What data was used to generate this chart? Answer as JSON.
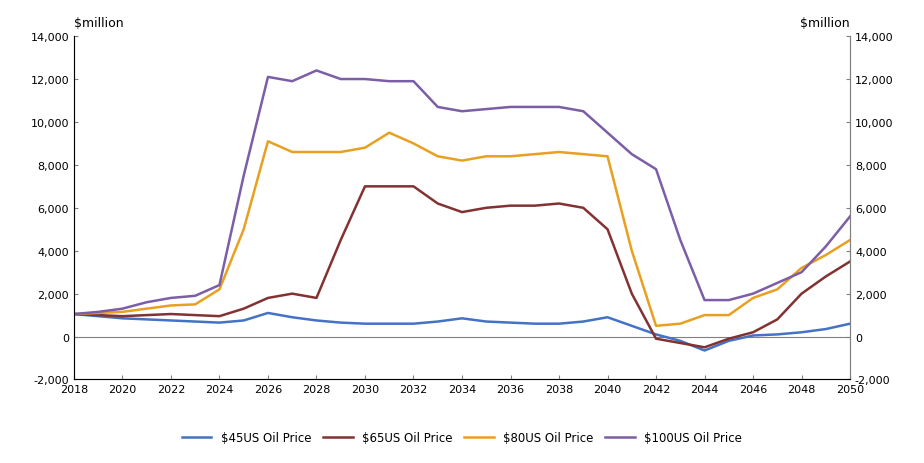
{
  "years": [
    2018,
    2019,
    2020,
    2021,
    2022,
    2023,
    2024,
    2025,
    2026,
    2027,
    2028,
    2029,
    2030,
    2031,
    2032,
    2033,
    2034,
    2035,
    2036,
    2037,
    2038,
    2039,
    2040,
    2041,
    2042,
    2043,
    2044,
    2045,
    2046,
    2047,
    2048,
    2049,
    2050
  ],
  "series": {
    "$45US Oil Price": {
      "color": "#4472C4",
      "values": [
        1050,
        950,
        850,
        800,
        750,
        700,
        650,
        750,
        1100,
        900,
        750,
        650,
        600,
        600,
        600,
        700,
        850,
        700,
        650,
        600,
        600,
        700,
        900,
        500,
        100,
        -200,
        -650,
        -200,
        50,
        100,
        200,
        350,
        600
      ]
    },
    "$65US Oil Price": {
      "color": "#833232",
      "values": [
        1050,
        1000,
        950,
        1000,
        1050,
        1000,
        950,
        1300,
        1800,
        2000,
        1800,
        4500,
        7000,
        7000,
        7000,
        6200,
        5800,
        6000,
        6100,
        6100,
        6200,
        6000,
        5000,
        2000,
        -100,
        -300,
        -500,
        -100,
        200,
        800,
        2000,
        2800,
        3500
      ]
    },
    "$80US Oil Price": {
      "color": "#E8A020",
      "values": [
        1050,
        1100,
        1150,
        1300,
        1450,
        1500,
        2200,
        5000,
        9100,
        8600,
        8600,
        8600,
        8800,
        9500,
        9000,
        8400,
        8200,
        8400,
        8400,
        8500,
        8600,
        8500,
        8400,
        4000,
        500,
        600,
        1000,
        1000,
        1800,
        2200,
        3200,
        3800,
        4500
      ]
    },
    "$100US Oil Price": {
      "color": "#7B5EA7",
      "values": [
        1050,
        1150,
        1300,
        1600,
        1800,
        1900,
        2400,
        7500,
        12100,
        11900,
        12400,
        12000,
        12000,
        11900,
        11900,
        10700,
        10500,
        10600,
        10700,
        10700,
        10700,
        10500,
        9500,
        8500,
        7800,
        4500,
        1700,
        1700,
        2000,
        2500,
        3000,
        4200,
        5600
      ]
    }
  },
  "ylim": [
    -2000,
    14000
  ],
  "yticks": [
    -2000,
    0,
    2000,
    4000,
    6000,
    8000,
    10000,
    12000,
    14000
  ],
  "xtick_years": [
    2018,
    2020,
    2022,
    2024,
    2026,
    2028,
    2030,
    2032,
    2034,
    2036,
    2038,
    2040,
    2042,
    2044,
    2046,
    2048,
    2050
  ],
  "ylabel_top": "$million",
  "background_color": "#ffffff",
  "legend_order": [
    "$45US Oil Price",
    "$65US Oil Price",
    "$80US Oil Price",
    "$100US Oil Price"
  ]
}
